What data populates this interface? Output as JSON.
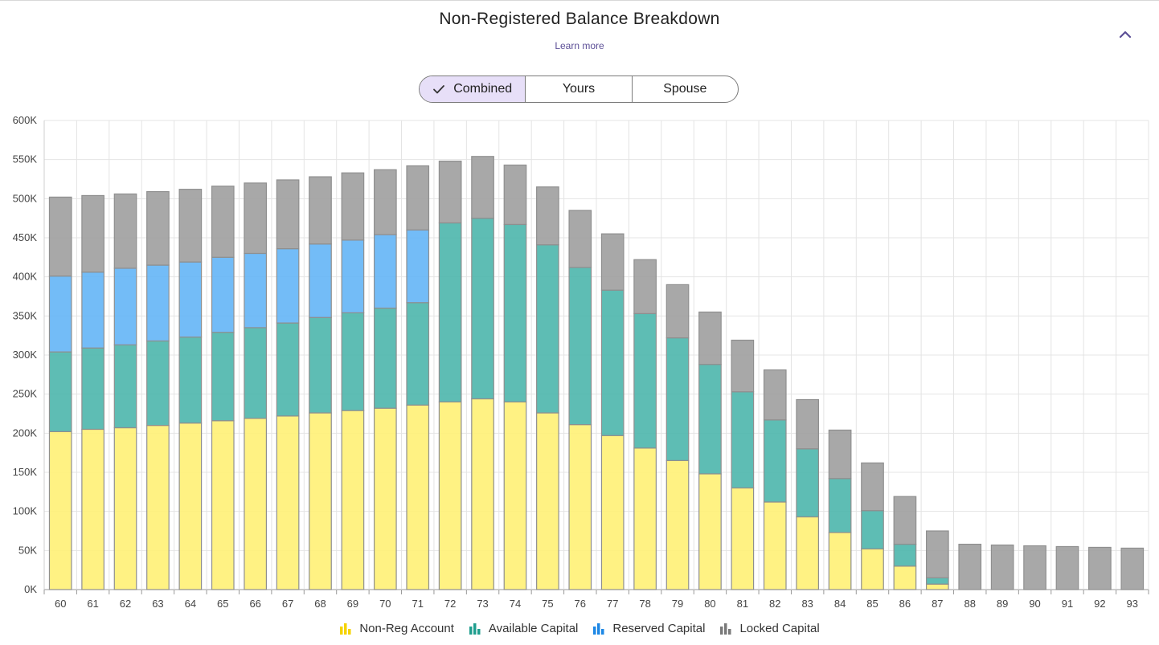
{
  "header": {
    "title": "Non-Registered Balance Breakdown",
    "learn_more": "Learn more"
  },
  "toggle": {
    "options": [
      "Combined",
      "Yours",
      "Spouse"
    ],
    "selected": "Combined"
  },
  "colors": {
    "non_reg": "#fff176",
    "available": "#4db6ac",
    "reserved": "#64b5f6",
    "locked": "#9e9e9e",
    "accent": "#5b4e96"
  },
  "chart_data": {
    "type": "bar",
    "stacked": true,
    "categories": [
      "60",
      "61",
      "62",
      "63",
      "64",
      "65",
      "66",
      "67",
      "68",
      "69",
      "70",
      "71",
      "72",
      "73",
      "74",
      "75",
      "76",
      "77",
      "78",
      "79",
      "80",
      "81",
      "82",
      "83",
      "84",
      "85",
      "86",
      "87",
      "88",
      "89",
      "90",
      "91",
      "92",
      "93"
    ],
    "ylim": [
      0,
      600000
    ],
    "yticks": [
      0,
      50000,
      100000,
      150000,
      200000,
      250000,
      300000,
      350000,
      400000,
      450000,
      500000,
      550000,
      600000
    ],
    "ytick_labels": [
      "0K",
      "50K",
      "100K",
      "150K",
      "200K",
      "250K",
      "300K",
      "350K",
      "400K",
      "450K",
      "500K",
      "550K",
      "600K"
    ],
    "grid": true,
    "legend_position": "bottom",
    "series": [
      {
        "name": "Non-Reg Account",
        "color": "#fff176",
        "values": [
          202000,
          205000,
          207000,
          210000,
          213000,
          216000,
          219000,
          222000,
          226000,
          229000,
          232000,
          236000,
          240000,
          244000,
          240000,
          226000,
          211000,
          197000,
          181000,
          165000,
          148000,
          130000,
          112000,
          93000,
          73000,
          52000,
          30000,
          7000,
          0,
          0,
          0,
          0,
          0,
          0
        ]
      },
      {
        "name": "Available Capital",
        "color": "#4db6ac",
        "values": [
          102000,
          104000,
          106000,
          108000,
          110000,
          113000,
          116000,
          119000,
          122000,
          125000,
          128000,
          131000,
          229000,
          231000,
          227000,
          215000,
          201000,
          186000,
          172000,
          157000,
          140000,
          123000,
          105000,
          87000,
          69000,
          49000,
          28000,
          8000,
          0,
          0,
          0,
          0,
          0,
          0
        ]
      },
      {
        "name": "Reserved Capital",
        "color": "#64b5f6",
        "values": [
          97000,
          97000,
          98000,
          97000,
          96000,
          96000,
          95000,
          95000,
          94000,
          93000,
          94000,
          93000,
          0,
          0,
          0,
          0,
          0,
          0,
          0,
          0,
          0,
          0,
          0,
          0,
          0,
          0,
          0,
          0,
          0,
          0,
          0,
          0,
          0,
          0
        ]
      },
      {
        "name": "Locked Capital",
        "color": "#9e9e9e",
        "values": [
          101000,
          98000,
          95000,
          94000,
          93000,
          91000,
          90000,
          88000,
          86000,
          86000,
          83000,
          82000,
          79000,
          79000,
          76000,
          74000,
          73000,
          72000,
          69000,
          68000,
          67000,
          66000,
          64000,
          63000,
          62000,
          61000,
          61000,
          60000,
          58000,
          57000,
          56000,
          55000,
          54000,
          53000
        ]
      }
    ]
  }
}
